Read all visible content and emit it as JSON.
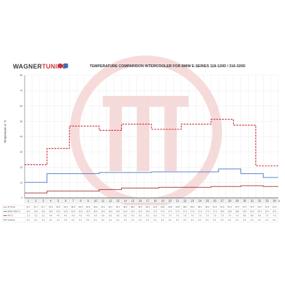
{
  "brand": {
    "name_part1": "WAGNER",
    "name_part2": "TUNING"
  },
  "chart_data": {
    "type": "line",
    "title": "TEMPERATURE COMPARISON INTERCOOLER FOR BMW E-SERIES 118-120D / 316-320D",
    "ylabel": "Temperature in °C",
    "xunit": "t/s",
    "ylim": [
      0,
      80
    ],
    "yticks": [
      0,
      10,
      20,
      30,
      40,
      50,
      60,
      70,
      80
    ],
    "x": [
      1,
      2,
      3,
      4,
      5,
      6,
      7,
      8,
      9,
      10,
      11,
      12,
      13,
      14,
      15,
      16,
      17,
      18,
      19,
      20,
      21,
      22,
      23,
      24,
      25,
      26,
      27,
      28,
      29,
      30,
      31,
      32,
      33,
      34
    ],
    "grid": true,
    "series": [
      {
        "name": "IP Turbo",
        "color": "#c81e2a",
        "style": "dashed",
        "values": [
          21.7,
          21.7,
          21.7,
          32.3,
          32.3,
          32.3,
          46.9,
          46.9,
          46.9,
          46.9,
          44.1,
          44.1,
          44.1,
          48.2,
          48.2,
          48.2,
          48.2,
          44.8,
          44.8,
          44.8,
          44.8,
          48.2,
          48.2,
          48.2,
          48.2,
          51.3,
          51.3,
          51.3,
          47.5,
          47.5,
          47.5,
          21.0,
          21.0,
          21.0
        ]
      },
      {
        "name": "BMW OEM IC",
        "color": "#3a74c4",
        "style": "solid",
        "values": [
          10.2,
          10.2,
          10.2,
          15.9,
          15.9,
          15.9,
          15.9,
          15.9,
          15.9,
          15.9,
          16.6,
          16.6,
          16.6,
          16.6,
          16.6,
          16.6,
          16.6,
          17.0,
          17.0,
          17.0,
          17.0,
          17.0,
          17.0,
          17.0,
          17.0,
          17.0,
          18.9,
          18.9,
          18.9,
          15.9,
          15.9,
          15.9,
          13.4,
          13.4
        ]
      },
      {
        "name": "WT IC",
        "color": "#a02a2a",
        "style": "solid",
        "values": [
          3.2,
          3.2,
          3.2,
          4.5,
          4.5,
          4.5,
          4.5,
          4.5,
          4.5,
          4.5,
          5.5,
          5.5,
          5.5,
          6.5,
          6.5,
          6.5,
          6.5,
          6.5,
          7.0,
          7.0,
          7.0,
          7.0,
          7.0,
          7.0,
          7.0,
          7.5,
          7.5,
          7.5,
          7.5,
          8.0,
          8.0,
          8.0,
          7.5,
          7.5
        ]
      },
      {
        "name": "Ambient",
        "color": "#777777",
        "style": "solid",
        "values": [
          0.1,
          0.1,
          0.1,
          0.1,
          0.1,
          0.1,
          0.1,
          0.1,
          0.1,
          0.1,
          0.1,
          0.1,
          0.1,
          0.1,
          0.1,
          0.1,
          0.1,
          0.1,
          0.1,
          0.1,
          0.1,
          0.1,
          0.1,
          0.1,
          0.1,
          0.1,
          0.1,
          0.1,
          0.1,
          0.1,
          0.1,
          0.1,
          0.1,
          0.1
        ]
      }
    ]
  }
}
